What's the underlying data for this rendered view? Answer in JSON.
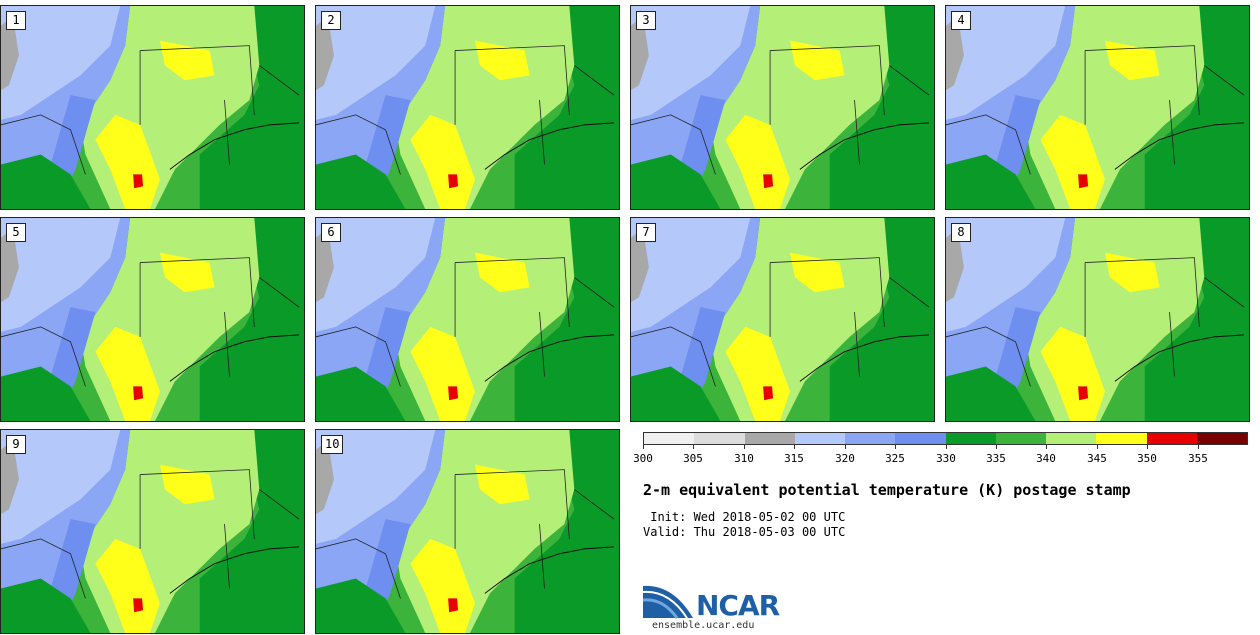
{
  "stamps": [
    {
      "label": "1"
    },
    {
      "label": "2"
    },
    {
      "label": "3"
    },
    {
      "label": "4"
    },
    {
      "label": "5"
    },
    {
      "label": "6"
    },
    {
      "label": "7"
    },
    {
      "label": "8"
    },
    {
      "label": "9"
    },
    {
      "label": "10"
    }
  ],
  "colorbar": {
    "colors": [
      "#f0f0f0",
      "#dcdcdc",
      "#a8a8a8",
      "#b4c8fa",
      "#8aa6f5",
      "#6e8ef0",
      "#0a9a28",
      "#3cb43c",
      "#b4f078",
      "#ffff19",
      "#e60000",
      "#780000"
    ],
    "labels": [
      "300",
      "305",
      "310",
      "315",
      "320",
      "325",
      "330",
      "335",
      "340",
      "345",
      "350",
      "355"
    ]
  },
  "title": "2-m equivalent potential temperature (K) postage stamp",
  "init": " Init: Wed 2018-05-02 00 UTC",
  "valid": "Valid: Thu 2018-05-03 00 UTC",
  "logo": {
    "text": "NCAR",
    "url": "ensemble.ucar.edu"
  },
  "map_colors": {
    "cold_light": "#b4c8fa",
    "cold_mid": "#8aa6f5",
    "cold_dark": "#6e8ef0",
    "gray": "#a8a8a8",
    "green_dark": "#0a9a28",
    "green": "#3cb43c",
    "green_light": "#b4f078",
    "yellow": "#ffff19",
    "red": "#e60000"
  }
}
